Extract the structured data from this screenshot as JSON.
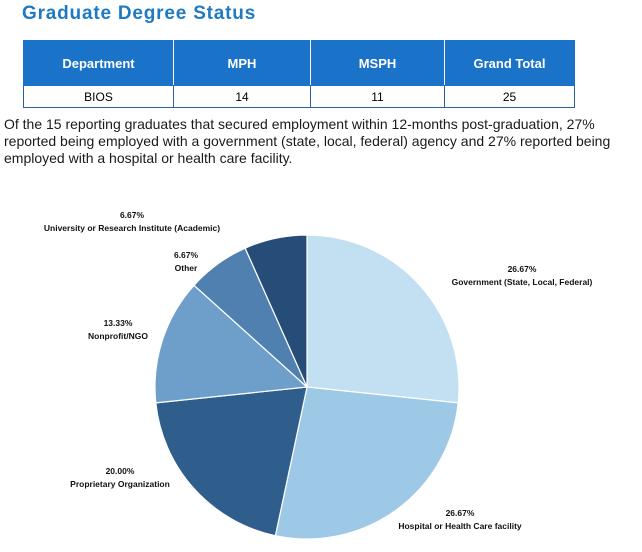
{
  "header": {
    "title": "Graduate Degree Status"
  },
  "table": {
    "columns": [
      "Department",
      "MPH",
      "MSPH",
      "Grand Total"
    ],
    "rows": [
      [
        "BIOS",
        "14",
        "11",
        "25"
      ]
    ]
  },
  "paragraph": "Of the 15 reporting graduates that secured employment within 12-months post-graduation, 27% reported being employed with a government (state, local, federal) agency and 27% reported being employed with a hospital or health care facility.",
  "chart_data": {
    "type": "pie",
    "title": "",
    "slices": [
      {
        "label": "Government (State, Local, Federal)",
        "value": 26.67,
        "display": "26.67%",
        "color": "#c3e0f3"
      },
      {
        "label": "Hospital or Health Care facility",
        "value": 26.67,
        "display": "26.67%",
        "color": "#9dc8e6"
      },
      {
        "label": "Proprietary Organization",
        "value": 20.0,
        "display": "20.00%",
        "color": "#2f5d8c"
      },
      {
        "label": "Nonprofit/NGO",
        "value": 13.33,
        "display": "13.33%",
        "color": "#6e9fca"
      },
      {
        "label": "Other",
        "value": 6.67,
        "display": "6.67%",
        "color": "#5080b0"
      },
      {
        "label": "University or Research Institute (Academic)",
        "value": 6.67,
        "display": "6.67%",
        "color": "#254d77"
      }
    ]
  }
}
